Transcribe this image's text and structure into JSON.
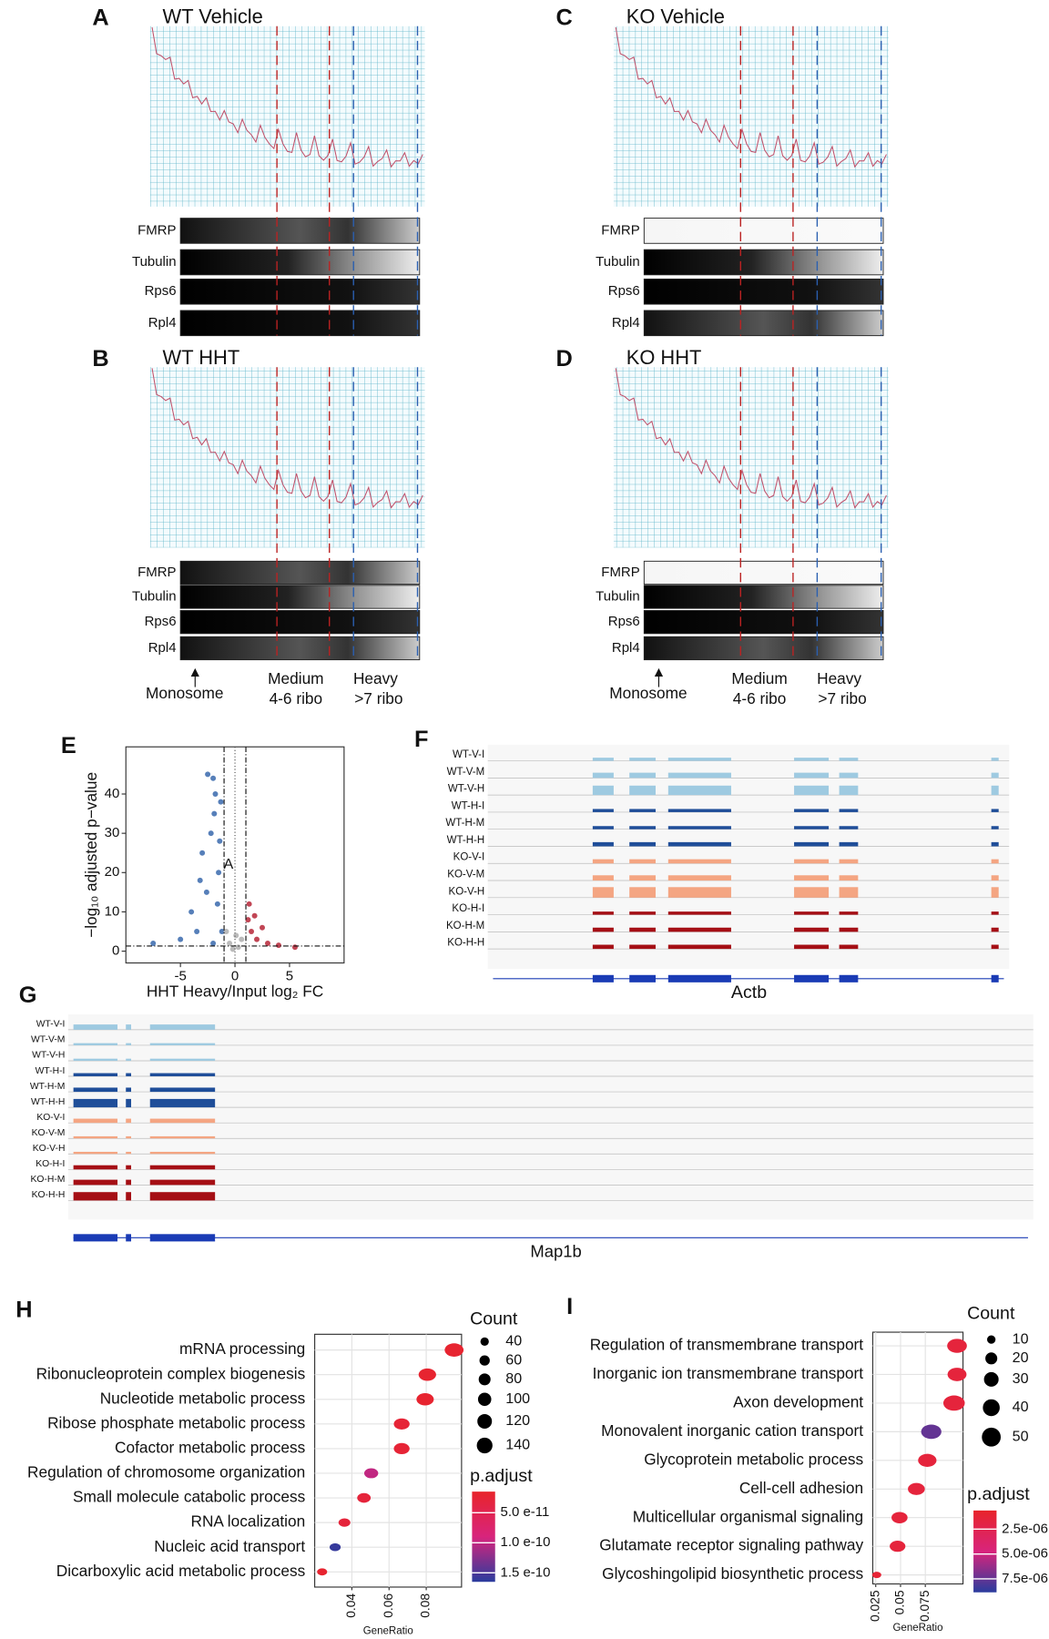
{
  "panels": {
    "A": {
      "letter": "A",
      "title": "WT Vehicle"
    },
    "B": {
      "letter": "B",
      "title": "WT HHT"
    },
    "C": {
      "letter": "C",
      "title": "KO Vehicle"
    },
    "D": {
      "letter": "D",
      "title": "KO HHT"
    },
    "F": {
      "letter": "F",
      "gene": "Actb"
    },
    "G": {
      "letter": "G",
      "gene": "Map1b"
    }
  },
  "blots": [
    "FMRP",
    "Tubulin",
    "Rps6",
    "Rpl4"
  ],
  "fractions": {
    "monosome": "Monosome",
    "medium": "Medium",
    "medium_sub": "4-6 ribo",
    "heavy": "Heavy",
    "heavy_sub": ">7 ribo"
  },
  "tracks": [
    "WT-V-I",
    "WT-V-M",
    "WT-V-H",
    "WT-H-I",
    "WT-H-M",
    "WT-H-H",
    "KO-V-I",
    "KO-V-M",
    "KO-V-H",
    "KO-H-I",
    "KO-H-M",
    "KO-H-H"
  ],
  "chart_data": [
    {
      "letter": "E",
      "type": "scatter",
      "xlabel": "HHT Heavy/Input log₂ FC",
      "ylabel": "−log₁₀ adjusted p−value",
      "xlim": [
        -10,
        10
      ],
      "ylim": [
        -3,
        52
      ],
      "xticks": [
        -5,
        0,
        5
      ],
      "yticks": [
        0,
        10,
        20,
        30,
        40
      ],
      "vlines": [
        -1,
        1
      ],
      "hline": 1.3,
      "annotation": {
        "text": "A",
        "x": -0.6,
        "y": 22
      },
      "series": [
        {
          "color": "#2c5fa8",
          "x": [
            -2.5,
            -2.0,
            -1.8,
            -1.3,
            -2.2,
            -3.0,
            -1.5,
            -4.0,
            -2.6,
            -1.6,
            -1.2,
            -3.5,
            -5.0,
            -7.5,
            -2.0,
            -1.4,
            -1.9,
            -3.2
          ],
          "values": [
            45,
            44,
            40,
            38,
            30,
            25,
            20,
            10,
            15,
            12,
            5,
            5,
            3,
            2,
            2,
            28,
            35,
            18
          ]
        },
        {
          "color": "#b2182b",
          "x": [
            1.2,
            1.5,
            2.0,
            3.0,
            1.3,
            4.0,
            2.5,
            1.8,
            5.5
          ],
          "values": [
            8,
            5,
            3,
            2,
            12,
            1.5,
            6,
            9,
            1
          ]
        },
        {
          "color": "#aaaaaa",
          "x": [
            -0.5,
            0.3,
            -0.8,
            0.6,
            -0.2,
            0.1
          ],
          "values": [
            2,
            1,
            5,
            3,
            0.5,
            4
          ]
        }
      ]
    },
    {
      "letter": "H",
      "type": "dot",
      "xlabel": "GeneRatio",
      "categories": [
        "mRNA processing",
        "Ribonucleoprotein complex biogenesis",
        "Nucleotide metabolic process",
        "Ribose phosphate metabolic process",
        "Cofactor metabolic process",
        "Regulation of chromosome organization",
        "Small molecule catabolic process",
        "RNA localization",
        "Nucleic acid transport",
        "Dicarboxylic acid metabolic process"
      ],
      "values": [
        0.095,
        0.0806,
        0.0794,
        0.0668,
        0.0668,
        0.0504,
        0.0465,
        0.036,
        0.031,
        0.024
      ],
      "counts": [
        140,
        120,
        118,
        98,
        98,
        77,
        72,
        55,
        48,
        40
      ],
      "padj": [
        2e-11,
        2e-11,
        2e-11,
        2.5e-11,
        2.5e-11,
        1e-10,
        3e-11,
        3e-11,
        1.6e-10,
        2e-11
      ],
      "xlim": [
        0.02,
        0.099
      ],
      "xticks": [
        0.04,
        0.06,
        0.08
      ],
      "size_title": "Count",
      "size_ticks": [
        40,
        60,
        80,
        100,
        120,
        140
      ],
      "color_title": "p.adjust",
      "color_lim": [
        1.5e-11,
        1.65e-10
      ],
      "color_ticks": [
        {
          "value": 5e-11,
          "label": "5.0 e-11"
        },
        {
          "value": 1e-10,
          "label": "1.0 e-10"
        },
        {
          "value": 1.5e-10,
          "label": "1.5 e-10"
        }
      ]
    },
    {
      "letter": "I",
      "type": "dot",
      "xlabel": "GeneRatio",
      "categories": [
        "Regulation of transmembrane transport",
        "Inorganic ion transmembrane transport",
        "Axon development",
        "Monovalent inorganic cation transport",
        "Glycoprotein metabolic process",
        "Cell-cell adhesion",
        "Multicellular organismal signaling",
        "Glutamate receptor signaling pathway",
        "Glycoshingolipid biosynthetic process"
      ],
      "values": [
        0.107,
        0.107,
        0.104,
        0.081,
        0.077,
        0.066,
        0.049,
        0.047,
        0.026
      ],
      "counts": [
        38,
        35,
        45,
        40,
        33,
        28,
        25,
        24,
        8
      ],
      "padj": [
        1.5e-06,
        1.5e-06,
        1.5e-06,
        7.5e-06,
        1.5e-06,
        1.5e-06,
        1.5e-06,
        1.5e-06,
        1.2e-06
      ],
      "xlim": [
        0.022,
        0.113
      ],
      "xticks": [
        0.025,
        0.05,
        0.075
      ],
      "size_title": "Count",
      "size_ticks": [
        10,
        20,
        30,
        40,
        50
      ],
      "color_title": "p.adjust",
      "color_lim": [
        6.25e-07,
        8.85e-06
      ],
      "color_ticks": [
        {
          "value": 2.5e-06,
          "label": "2.5e-06"
        },
        {
          "value": 5e-06,
          "label": "5.0e-06"
        },
        {
          "value": 7.5e-06,
          "label": "7.5e-06"
        }
      ]
    }
  ]
}
